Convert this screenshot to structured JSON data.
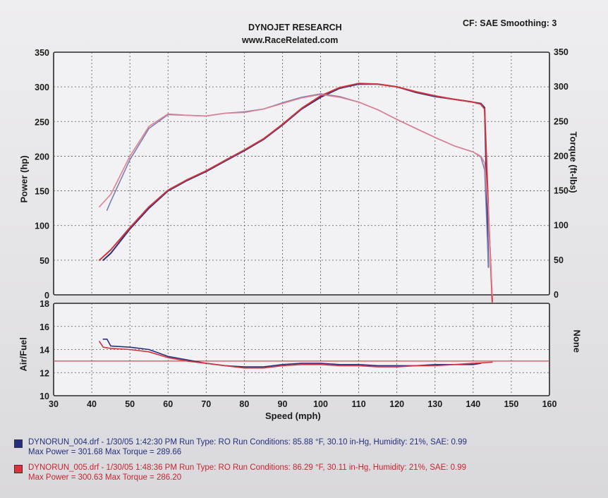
{
  "header": {
    "title": "DYNOJET RESEARCH",
    "url": "www.RaceRelated.com",
    "settings": "CF: SAE  Smoothing: 3"
  },
  "chart_data": [
    {
      "type": "line",
      "panel": "power-torque",
      "ylabel": "Power (hp)",
      "y2label": "Torque (ft-lbs)",
      "xlim": [
        30,
        160
      ],
      "ylim": [
        0,
        350
      ],
      "y2lim": [
        0,
        350
      ],
      "y_ticks": [
        0,
        50,
        100,
        150,
        200,
        250,
        300,
        350
      ],
      "y2_ticks": [
        0,
        50,
        100,
        150,
        200,
        250,
        300,
        350
      ],
      "grid": true,
      "series": [
        {
          "name": "DYNORUN_004.drf",
          "measure": "power",
          "color": "#2a2f7a",
          "x": [
            43,
            45,
            50,
            55,
            60,
            65,
            70,
            75,
            80,
            85,
            90,
            95,
            100,
            105,
            110,
            115,
            120,
            125,
            130,
            135,
            140,
            142,
            143,
            144
          ],
          "y": [
            50,
            60,
            95,
            125,
            150,
            165,
            178,
            193,
            208,
            224,
            245,
            268,
            285,
            298,
            304,
            304,
            300,
            292,
            286,
            282,
            278,
            276,
            270,
            40
          ]
        },
        {
          "name": "DYNORUN_004.drf",
          "measure": "torque",
          "color": "#7a7fb8",
          "x": [
            44,
            45,
            50,
            55,
            60,
            65,
            70,
            75,
            80,
            85,
            90,
            95,
            100,
            105,
            110,
            115,
            120,
            125,
            130,
            135,
            140,
            142,
            143,
            144
          ],
          "y": [
            122,
            135,
            195,
            240,
            260,
            259,
            258,
            262,
            264,
            268,
            277,
            285,
            290,
            286,
            278,
            267,
            253,
            240,
            227,
            215,
            206,
            199,
            180,
            40
          ]
        },
        {
          "name": "DYNORUN_005.drf",
          "measure": "power",
          "color": "#d0343c",
          "x": [
            42,
            45,
            50,
            55,
            60,
            65,
            70,
            75,
            80,
            85,
            90,
            95,
            100,
            105,
            110,
            115,
            120,
            125,
            130,
            135,
            140,
            142,
            143,
            144,
            145
          ],
          "y": [
            50,
            65,
            97,
            127,
            151,
            166,
            179,
            194,
            209,
            225,
            246,
            269,
            287,
            299,
            305,
            304,
            300,
            293,
            287,
            282,
            278,
            275,
            268,
            120,
            -10
          ]
        },
        {
          "name": "DYNORUN_005.drf",
          "measure": "torque",
          "color": "#e08090",
          "x": [
            42,
            45,
            50,
            55,
            60,
            65,
            70,
            75,
            80,
            85,
            90,
            95,
            100,
            105,
            110,
            115,
            120,
            125,
            130,
            135,
            140,
            142,
            143,
            144,
            145
          ],
          "y": [
            127,
            145,
            200,
            243,
            261,
            259,
            258,
            262,
            263,
            268,
            276,
            284,
            289,
            285,
            278,
            267,
            253,
            240,
            227,
            215,
            206,
            200,
            190,
            120,
            0
          ]
        }
      ]
    },
    {
      "type": "line",
      "panel": "air-fuel",
      "ylabel": "Air/Fuel",
      "y2label": "None",
      "xlabel": "Speed (mph)",
      "xlim": [
        30,
        160
      ],
      "x_ticks": [
        30,
        40,
        50,
        60,
        70,
        80,
        90,
        100,
        110,
        120,
        130,
        140,
        150,
        160
      ],
      "ylim": [
        10,
        18
      ],
      "y_ticks": [
        10,
        12,
        14,
        16,
        18
      ],
      "reference_line": 13.0,
      "grid": true,
      "series": [
        {
          "name": "DYNORUN_004.drf",
          "color": "#2a2f7a",
          "x": [
            43,
            44,
            45,
            50,
            55,
            60,
            65,
            70,
            75,
            80,
            85,
            90,
            95,
            100,
            105,
            110,
            115,
            120,
            125,
            130,
            135,
            140,
            142
          ],
          "y": [
            14.9,
            14.9,
            14.3,
            14.2,
            14.0,
            13.4,
            13.1,
            12.8,
            12.6,
            12.5,
            12.5,
            12.7,
            12.8,
            12.8,
            12.7,
            12.7,
            12.6,
            12.6,
            12.6,
            12.7,
            12.7,
            12.7,
            12.8
          ]
        },
        {
          "name": "DYNORUN_005.drf",
          "color": "#d0343c",
          "x": [
            42,
            43,
            45,
            50,
            55,
            60,
            65,
            70,
            75,
            80,
            85,
            90,
            95,
            100,
            105,
            110,
            115,
            120,
            125,
            130,
            135,
            140,
            145
          ],
          "y": [
            14.7,
            14.2,
            14.1,
            14.0,
            13.8,
            13.3,
            13.0,
            12.8,
            12.6,
            12.4,
            12.4,
            12.6,
            12.7,
            12.7,
            12.6,
            12.6,
            12.5,
            12.5,
            12.6,
            12.6,
            12.7,
            12.8,
            12.9
          ]
        }
      ]
    }
  ],
  "legend": [
    {
      "color": "#24307f",
      "text_color": "#24307f",
      "line1": "DYNORUN_004.drf - 1/30/05 1:42:30 PM  Run Type: RO  Run Conditions: 85.88 °F, 30.10 in-Hg,  Humidity:  21%, SAE: 0.99",
      "line2": "Max Power = 301.68  Max Torque = 289.66"
    },
    {
      "color": "#d8343c",
      "text_color": "#c8262e",
      "line1": "DYNORUN_005.drf - 1/30/05 1:48:36 PM  Run Type: RO  Run Conditions: 86.29 °F, 30.11 in-Hg,  Humidity:  21%, SAE: 0.99",
      "line2": "Max Power = 300.63  Max Torque = 286.20"
    }
  ]
}
